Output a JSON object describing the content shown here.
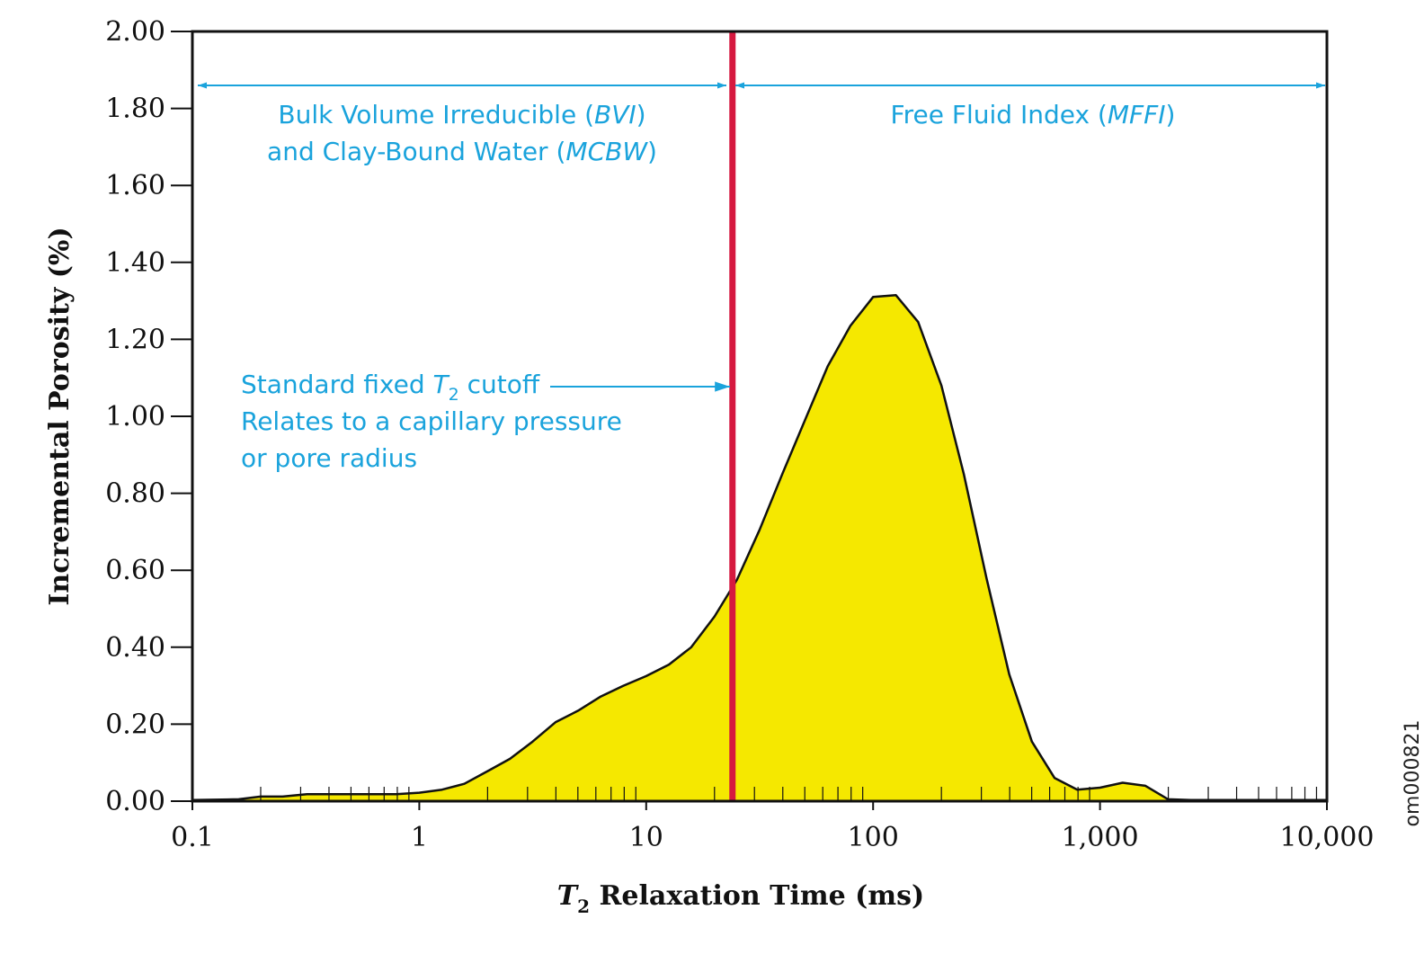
{
  "chart_data": {
    "type": "area",
    "xscale": "log",
    "xlim": [
      0.1,
      10000
    ],
    "ylim": [
      0,
      2.0
    ],
    "grid": false,
    "xlabel": {
      "symbol": "T",
      "subscript": "2",
      "text": " Relaxation Time (ms)"
    },
    "ylabel": "Incremental Porosity (%)",
    "x_ticks": [
      0.1,
      1,
      10,
      100,
      1000,
      10000
    ],
    "x_tick_labels": [
      "0.1",
      "1",
      "10",
      "100",
      "1,000",
      "10,000"
    ],
    "y_ticks": [
      0,
      0.2,
      0.4,
      0.6,
      0.8,
      1.0,
      1.2,
      1.4,
      1.6,
      1.8,
      2.0
    ],
    "y_tick_labels": [
      "0.00",
      "0.20",
      "0.40",
      "0.60",
      "0.80",
      "1.00",
      "1.20",
      "1.40",
      "1.60",
      "1.80",
      "2.00"
    ],
    "series": [
      {
        "x": [
          0.1,
          0.16,
          0.2,
          0.25,
          0.32,
          0.4,
          0.5,
          0.63,
          0.79,
          1.0,
          1.26,
          1.58,
          2.0,
          2.51,
          3.16,
          3.98,
          5.01,
          6.31,
          7.94,
          10.0,
          12.6,
          15.8,
          20.0,
          25.1,
          31.6,
          39.8,
          50.1,
          63.1,
          79.4,
          100,
          126,
          158,
          200,
          251,
          316,
          398,
          501,
          631,
          794,
          1000,
          1259,
          1585,
          1995,
          2512,
          3162,
          5012,
          10000
        ],
        "y": [
          0.003,
          0.005,
          0.012,
          0.012,
          0.018,
          0.018,
          0.018,
          0.018,
          0.018,
          0.022,
          0.03,
          0.045,
          0.078,
          0.11,
          0.155,
          0.205,
          0.235,
          0.272,
          0.3,
          0.325,
          0.355,
          0.4,
          0.48,
          0.575,
          0.705,
          0.85,
          0.99,
          1.13,
          1.235,
          1.31,
          1.315,
          1.245,
          1.08,
          0.85,
          0.58,
          0.33,
          0.155,
          0.06,
          0.03,
          0.035,
          0.048,
          0.04,
          0.005,
          0.003,
          0.003,
          0.003,
          0.003
        ]
      }
    ],
    "colors": {
      "fill": "#f5e800",
      "line": "#111111",
      "cutoff": "#d6193f",
      "annotation": "#1aa3dc"
    },
    "cutoff_x": 24
  },
  "annotations": {
    "bvi_line1": "Bulk Volume Irreducible (",
    "bvi_line1_italic": "BVI",
    "bvi_line1_end": ")",
    "bvi_line2": "and Clay-Bound Water (",
    "bvi_line2_italic": "MCBW",
    "bvi_line2_end": ")",
    "ffi_text": "Free Fluid Index (",
    "ffi_italic": "MFFI",
    "ffi_end": ")",
    "cutoff_line1_a": "Standard fixed ",
    "cutoff_line1_symbol": "T",
    "cutoff_line1_sub": "2",
    "cutoff_line1_b": " cutoff",
    "cutoff_line2": "Relates to a capillary pressure",
    "cutoff_line3": "or pore radius"
  },
  "figure_id": "om000821"
}
